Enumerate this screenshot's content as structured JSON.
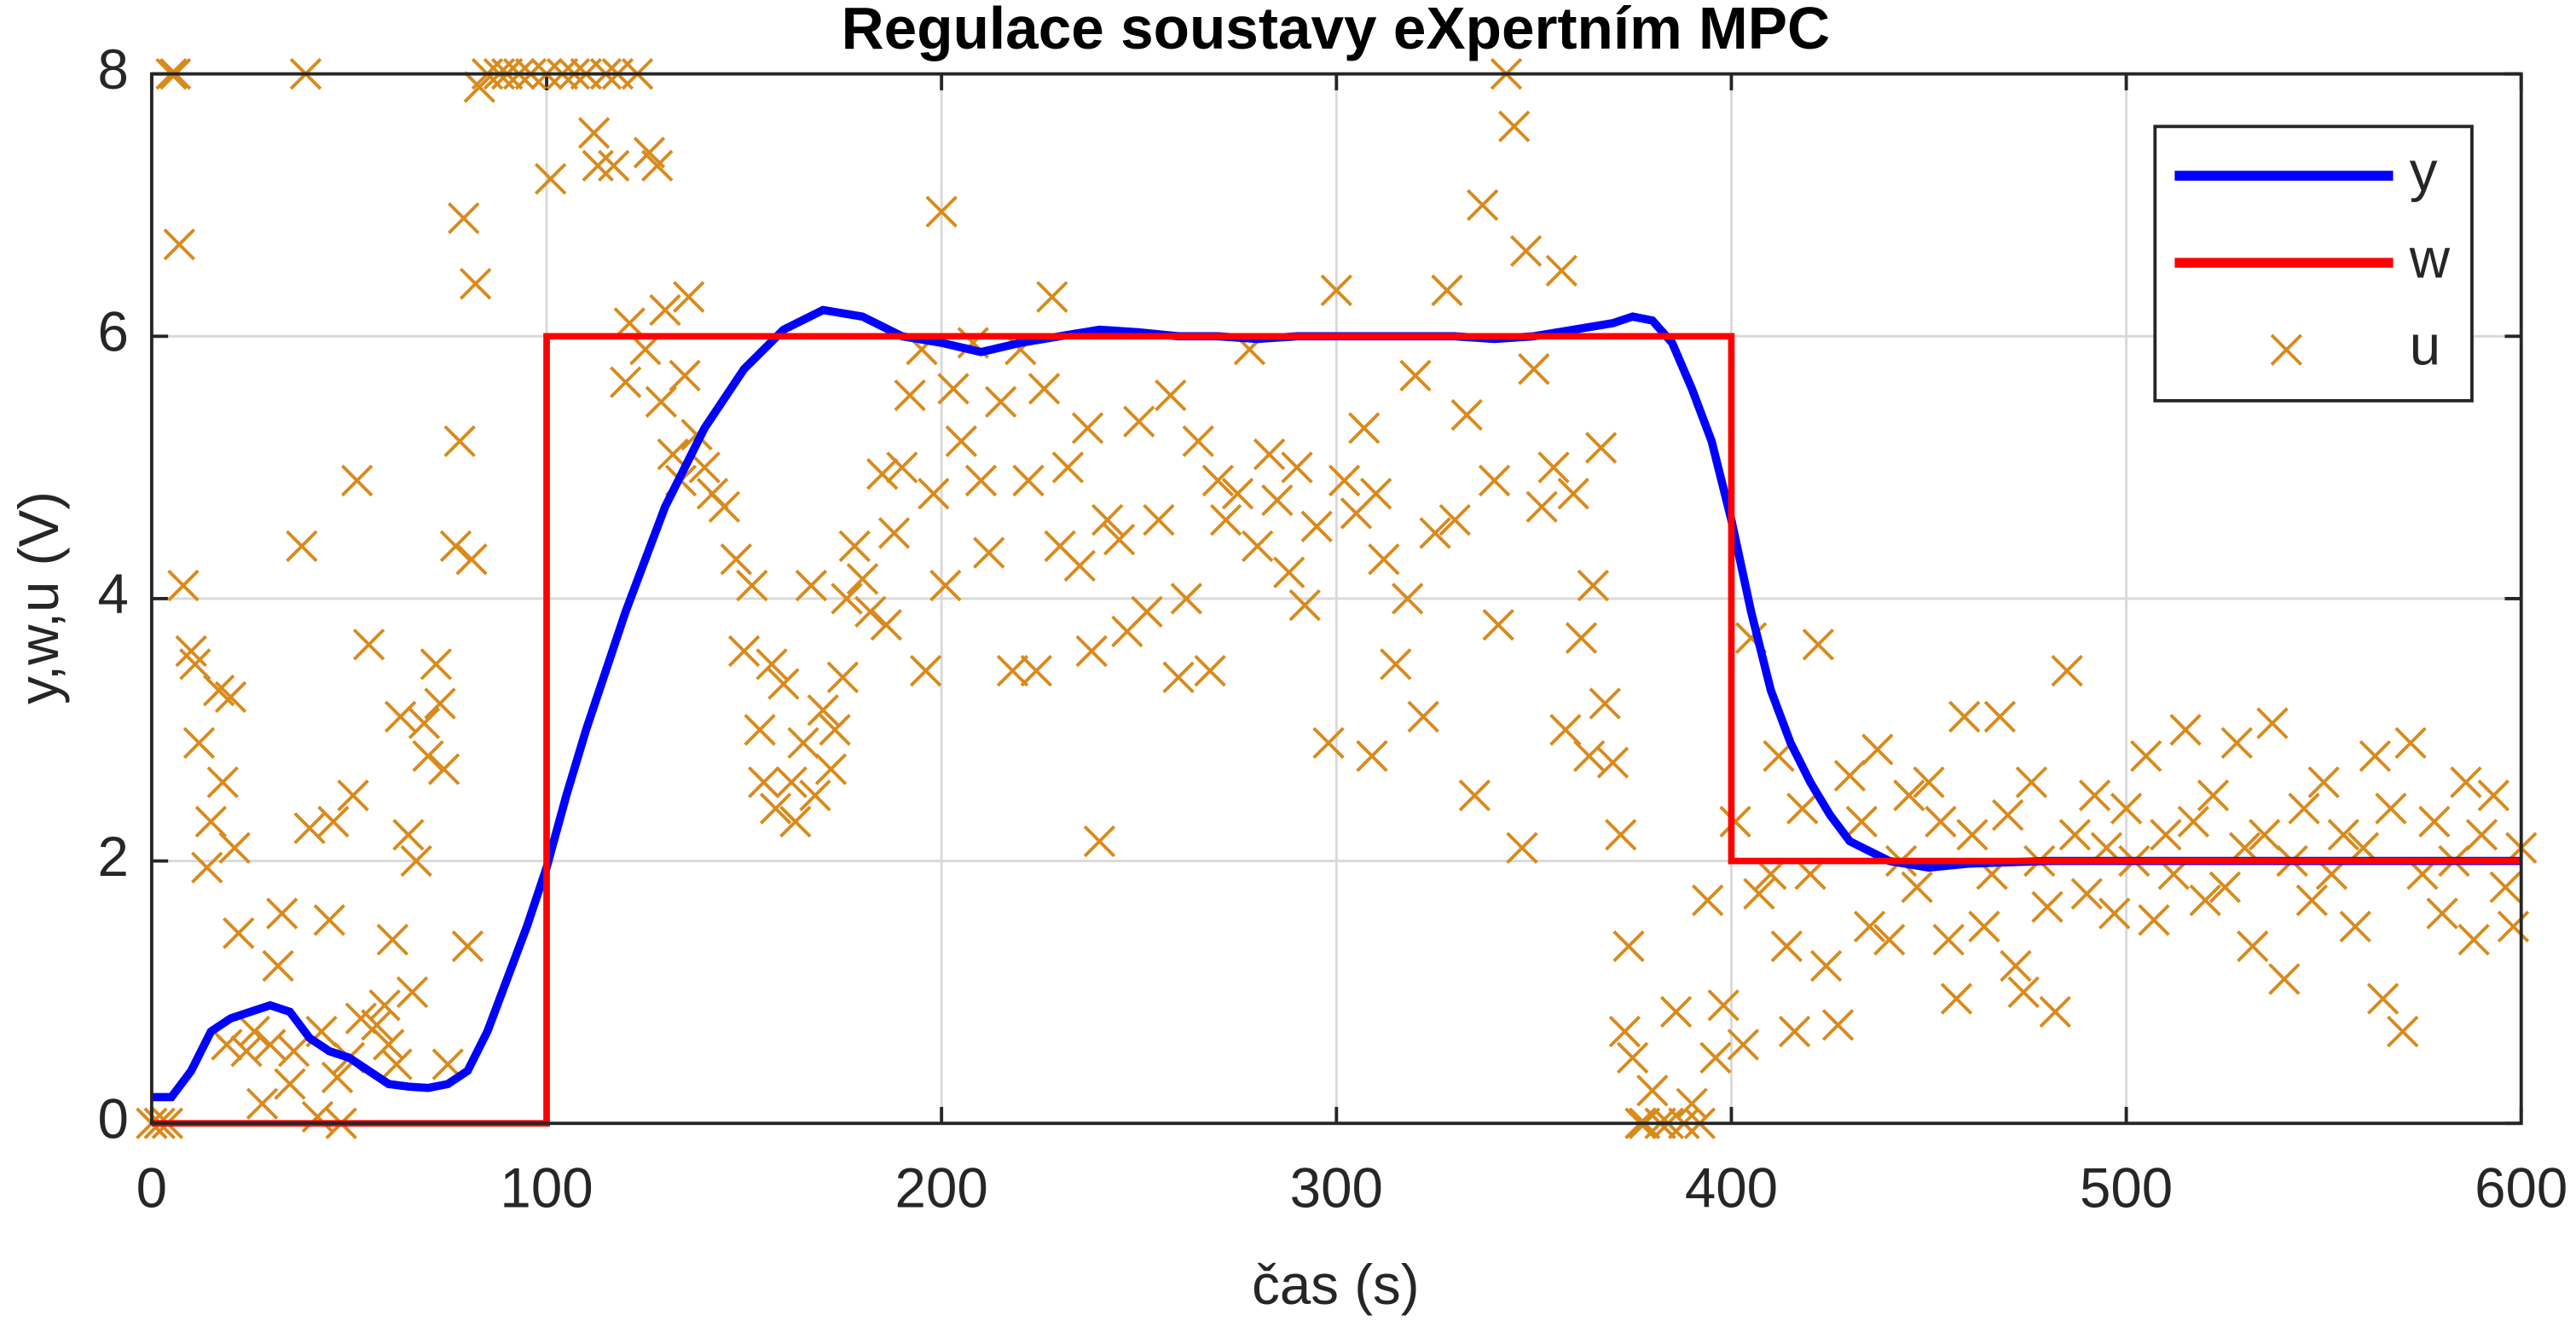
{
  "chart_data": {
    "type": "line",
    "title": "Regulace soustavy eXpertním MPC",
    "xlabel": "čas (s)",
    "ylabel": "y,w,u (V)",
    "xlim": [
      0,
      600
    ],
    "xticks": [
      0,
      100,
      200,
      300,
      400,
      500,
      600
    ],
    "ylim": [
      0,
      8
    ],
    "yticks": [
      0,
      2,
      4,
      6,
      8
    ],
    "grid": true,
    "legend": "upper right",
    "series": [
      {
        "name": "y",
        "color": "#0000ff",
        "mode": "lines",
        "x": [
          0,
          5,
          10,
          15,
          20,
          25,
          30,
          35,
          40,
          45,
          50,
          55,
          60,
          65,
          70,
          75,
          80,
          85,
          90,
          95,
          100,
          105,
          110,
          120,
          130,
          140,
          150,
          160,
          170,
          180,
          190,
          200,
          210,
          220,
          230,
          240,
          250,
          260,
          270,
          280,
          290,
          300,
          310,
          320,
          330,
          340,
          350,
          360,
          370,
          375,
          380,
          385,
          390,
          395,
          400,
          405,
          410,
          415,
          420,
          425,
          430,
          440,
          450,
          460,
          480,
          500,
          550,
          600
        ],
        "values": [
          0.2,
          0.2,
          0.4,
          0.7,
          0.8,
          0.85,
          0.9,
          0.85,
          0.65,
          0.55,
          0.5,
          0.4,
          0.3,
          0.28,
          0.27,
          0.3,
          0.4,
          0.7,
          1.1,
          1.5,
          1.95,
          2.5,
          3.0,
          3.9,
          4.7,
          5.3,
          5.75,
          6.05,
          6.2,
          6.15,
          6.0,
          5.95,
          5.88,
          5.95,
          6.0,
          6.05,
          6.03,
          6.0,
          6.0,
          5.98,
          6.0,
          6.0,
          6.0,
          6.0,
          6.0,
          5.98,
          6.0,
          6.05,
          6.1,
          6.15,
          6.12,
          5.95,
          5.6,
          5.2,
          4.6,
          3.9,
          3.3,
          2.9,
          2.6,
          2.35,
          2.15,
          2.0,
          1.95,
          1.98,
          2.0,
          2.0,
          2.0,
          2.0
        ]
      },
      {
        "name": "w",
        "color": "#ff0000",
        "mode": "lines",
        "x": [
          0,
          100,
          100,
          400,
          400,
          600
        ],
        "values": [
          0,
          0,
          6,
          6,
          2,
          2
        ]
      },
      {
        "name": "u",
        "color": "#d98a1c",
        "mode": "markers",
        "x": [
          0,
          2,
          4,
          5,
          6,
          7,
          8,
          10,
          11,
          12,
          14,
          15,
          17,
          18,
          19,
          20,
          21,
          22,
          24,
          26,
          28,
          30,
          32,
          33,
          35,
          36,
          38,
          39,
          40,
          42,
          43,
          45,
          46,
          47,
          48,
          50,
          51,
          52,
          53,
          55,
          57,
          59,
          60,
          61,
          62,
          63,
          65,
          66,
          67,
          69,
          70,
          72,
          73,
          74,
          75,
          77,
          78,
          79,
          80,
          81,
          82,
          83,
          85,
          88,
          90,
          93,
          96,
          100,
          101,
          104,
          107,
          110,
          112,
          113,
          115,
          117,
          118,
          120,
          121,
          123,
          125,
          126,
          128,
          129,
          130,
          132,
          134,
          135,
          136,
          138,
          140,
          142,
          145,
          148,
          150,
          152,
          154,
          155,
          157,
          158,
          160,
          162,
          163,
          165,
          167,
          168,
          170,
          172,
          173,
          175,
          176,
          178,
          180,
          182,
          185,
          186,
          188,
          190,
          192,
          195,
          196,
          198,
          200,
          201,
          203,
          205,
          208,
          210,
          212,
          215,
          218,
          220,
          222,
          224,
          226,
          228,
          230,
          232,
          235,
          237,
          238,
          240,
          242,
          245,
          247,
          250,
          252,
          255,
          258,
          260,
          262,
          265,
          268,
          270,
          272,
          275,
          278,
          280,
          283,
          285,
          288,
          290,
          292,
          295,
          298,
          300,
          302,
          305,
          307,
          309,
          310,
          312,
          315,
          318,
          320,
          322,
          325,
          328,
          330,
          333,
          335,
          337,
          340,
          341,
          343,
          345,
          347,
          348,
          350,
          352,
          355,
          357,
          358,
          360,
          362,
          364,
          365,
          367,
          368,
          370,
          372,
          373,
          374,
          375,
          377,
          378,
          380,
          382,
          384,
          386,
          388,
          390,
          392,
          394,
          396,
          398,
          401,
          403,
          405,
          407,
          410,
          412,
          414,
          416,
          418,
          420,
          422,
          424,
          427,
          430,
          433,
          435,
          437,
          440,
          443,
          445,
          447,
          450,
          453,
          455,
          457,
          459,
          461,
          464,
          466,
          468,
          470,
          472,
          474,
          476,
          478,
          480,
          482,
          485,
          487,
          490,
          492,
          495,
          497,
          500,
          502,
          505,
          507,
          510,
          512,
          515,
          517,
          520,
          522,
          525,
          528,
          530,
          532,
          535,
          537,
          540,
          542,
          545,
          547,
          550,
          552,
          555,
          558,
          560,
          563,
          565,
          567,
          570,
          572,
          575,
          578,
          580,
          583,
          586,
          588,
          590,
          593,
          596,
          598,
          600
        ],
        "values": [
          0,
          0,
          0,
          8,
          8,
          6.7,
          4.1,
          3.6,
          3.5,
          2.9,
          1.95,
          2.3,
          3.3,
          2.6,
          0.6,
          3.25,
          2.1,
          1.45,
          0.55,
          0.7,
          0.15,
          0.6,
          1.2,
          1.6,
          0.3,
          0.55,
          4.4,
          8,
          2.25,
          0.05,
          0.7,
          1.55,
          2.3,
          0.35,
          0,
          0.5,
          2.5,
          4.9,
          0.8,
          3.65,
          0.75,
          0.9,
          0.6,
          1.4,
          0.45,
          3.1,
          2.2,
          1.0,
          2.0,
          3.05,
          2.8,
          3.5,
          3.2,
          2.7,
          0.45,
          4.4,
          5.2,
          6.9,
          1.35,
          4.3,
          6.4,
          7.9,
          8,
          8,
          8,
          8,
          8,
          8,
          7.2,
          8,
          8,
          8,
          7.55,
          7.3,
          8,
          7.3,
          8,
          5.65,
          6.1,
          8,
          5.9,
          7.4,
          7.3,
          5.5,
          6.2,
          5.1,
          4.9,
          5.7,
          6.3,
          5.25,
          5.0,
          4.8,
          4.7,
          4.3,
          3.6,
          4.1,
          3.0,
          2.6,
          3.5,
          2.4,
          3.35,
          2.6,
          2.3,
          2.9,
          4.1,
          2.5,
          3.15,
          2.7,
          3.0,
          3.4,
          4.0,
          4.4,
          4.15,
          3.9,
          4.95,
          3.8,
          4.5,
          5.0,
          5.55,
          5.9,
          3.45,
          4.8,
          6.95,
          4.1,
          5.6,
          5.2,
          5.95,
          4.9,
          4.35,
          5.5,
          3.45,
          5.9,
          4.9,
          3.45,
          5.6,
          6.3,
          4.4,
          5.0,
          4.25,
          5.3,
          3.6,
          2.15,
          4.6,
          4.45,
          3.75,
          5.35,
          3.9,
          4.6,
          5.55,
          3.4,
          4.0,
          5.2,
          3.45,
          4.9,
          4.6,
          4.8,
          5.9,
          4.4,
          5.1,
          4.75,
          4.2,
          5.0,
          3.95,
          4.55,
          2.9,
          6.35,
          4.9,
          4.65,
          5.3,
          2.8,
          4.8,
          4.3,
          3.5,
          4.0,
          5.7,
          3.1,
          4.5,
          6.35,
          4.6,
          5.4,
          2.5,
          7.0,
          4.9,
          3.8,
          8,
          7.6,
          2.1,
          6.65,
          5.75,
          4.7,
          5.0,
          6.5,
          3.0,
          4.8,
          3.7,
          2.8,
          4.1,
          5.15,
          3.2,
          2.75,
          2.2,
          0.7,
          1.35,
          0.5,
          0,
          0,
          0.25,
          0,
          0,
          0.85,
          0,
          0.15,
          0,
          1.7,
          0.5,
          0.9,
          2.3,
          0.6,
          3.7,
          1.75,
          1.9,
          2.8,
          1.35,
          0.7,
          2.4,
          1.9,
          3.65,
          1.2,
          0.75,
          2.65,
          2.3,
          1.5,
          2.85,
          1.4,
          2.0,
          2.5,
          1.8,
          2.6,
          2.3,
          1.4,
          0.95,
          3.1,
          2.2,
          1.5,
          1.9,
          3.1,
          2.35,
          1.2,
          1.0,
          2.6,
          2.0,
          1.65,
          0.85,
          3.45,
          2.2,
          1.75,
          2.5,
          2.1,
          1.6,
          2.4,
          2.0,
          2.8,
          1.55,
          2.2,
          1.9,
          3.0,
          2.3,
          1.7,
          2.5,
          1.8,
          2.9,
          2.1,
          1.35,
          2.2,
          3.05,
          1.1,
          2.0,
          2.4,
          1.7,
          2.6,
          1.9,
          2.2,
          1.5,
          2.1,
          2.8,
          0.95,
          2.4,
          0.7,
          2.9,
          1.9,
          2.3,
          1.6,
          2.0,
          2.6,
          1.4,
          2.2,
          2.5,
          1.8,
          1.5,
          2.1
        ]
      }
    ]
  }
}
